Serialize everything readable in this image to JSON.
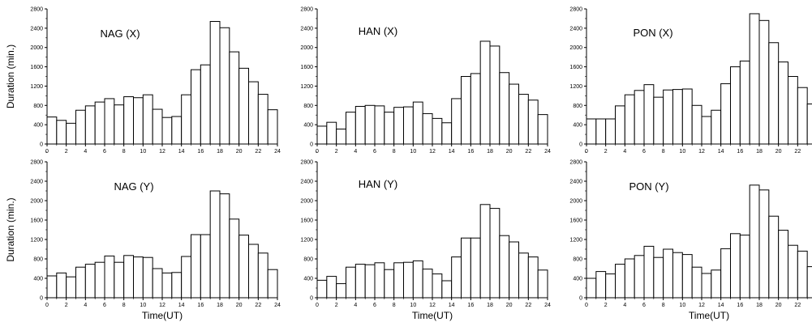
{
  "chart_data": [
    {
      "type": "bar",
      "title": "NAG (X)",
      "xlabel": "",
      "ylabel": "Duration (min.)",
      "x": [
        0,
        1,
        2,
        3,
        4,
        5,
        6,
        7,
        8,
        9,
        10,
        11,
        12,
        13,
        14,
        15,
        16,
        17,
        18,
        19,
        20,
        21,
        22,
        23
      ],
      "values": [
        560,
        490,
        430,
        700,
        790,
        870,
        940,
        810,
        980,
        960,
        1020,
        720,
        550,
        570,
        1020,
        1540,
        1640,
        2540,
        2410,
        1910,
        1570,
        1290,
        1030,
        710
      ],
      "xlim": [
        0,
        24
      ],
      "ylim": [
        0,
        2800
      ],
      "xticks": [
        "0",
        "2",
        "4",
        "6",
        "8",
        "10",
        "12",
        "14",
        "16",
        "18",
        "20",
        "22",
        "24"
      ],
      "yticks": [
        "0",
        "400",
        "800",
        "1200",
        "1600",
        "2000",
        "2400",
        "2800"
      ]
    },
    {
      "type": "bar",
      "title": "HAN (X)",
      "xlabel": "",
      "ylabel": "",
      "x": [
        0,
        1,
        2,
        3,
        4,
        5,
        6,
        7,
        8,
        9,
        10,
        11,
        12,
        13,
        14,
        15,
        16,
        17,
        18,
        19,
        20,
        21,
        22,
        23
      ],
      "values": [
        370,
        450,
        310,
        660,
        780,
        800,
        790,
        660,
        760,
        770,
        870,
        630,
        530,
        440,
        940,
        1400,
        1460,
        2130,
        2030,
        1480,
        1240,
        1030,
        910,
        610
      ],
      "xlim": [
        0,
        24
      ],
      "ylim": [
        0,
        2800
      ],
      "xticks": [
        "0",
        "2",
        "4",
        "6",
        "8",
        "10",
        "12",
        "14",
        "16",
        "18",
        "20",
        "22",
        "24"
      ],
      "yticks": [
        "0",
        "400",
        "800",
        "1200",
        "1600",
        "2000",
        "2400",
        "2800"
      ]
    },
    {
      "type": "bar",
      "title": "PON (X)",
      "xlabel": "",
      "ylabel": "",
      "x": [
        0,
        1,
        2,
        3,
        4,
        5,
        6,
        7,
        8,
        9,
        10,
        11,
        12,
        13,
        14,
        15,
        16,
        17,
        18,
        19,
        20,
        21,
        22,
        23
      ],
      "values": [
        520,
        520,
        520,
        790,
        1020,
        1110,
        1230,
        970,
        1120,
        1130,
        1140,
        800,
        570,
        700,
        1250,
        1600,
        1720,
        2700,
        2560,
        2100,
        1700,
        1400,
        1170,
        830
      ],
      "xlim": [
        0,
        24
      ],
      "ylim": [
        0,
        2800
      ],
      "xticks": [
        "0",
        "2",
        "4",
        "6",
        "8",
        "10",
        "12",
        "14",
        "16",
        "18",
        "20",
        "22",
        "2"
      ],
      "yticks": [
        "0",
        "400",
        "800",
        "1200",
        "1600",
        "2000",
        "2400",
        "2800"
      ]
    },
    {
      "type": "bar",
      "title": "NAG (Y)",
      "xlabel": "Time(UT)",
      "ylabel": "Duration (min.)",
      "x": [
        0,
        1,
        2,
        3,
        4,
        5,
        6,
        7,
        8,
        9,
        10,
        11,
        12,
        13,
        14,
        15,
        16,
        17,
        18,
        19,
        20,
        21,
        22,
        23
      ],
      "values": [
        450,
        510,
        430,
        630,
        690,
        730,
        860,
        730,
        870,
        840,
        830,
        600,
        510,
        520,
        850,
        1300,
        1300,
        2200,
        2140,
        1620,
        1290,
        1100,
        920,
        580
      ],
      "xlim": [
        0,
        24
      ],
      "ylim": [
        0,
        2800
      ],
      "xticks": [
        "0",
        "2",
        "4",
        "6",
        "8",
        "10",
        "12",
        "14",
        "16",
        "18",
        "20",
        "22",
        "24"
      ],
      "yticks": [
        "0",
        "400",
        "800",
        "1200",
        "1600",
        "2000",
        "2400",
        "2800"
      ]
    },
    {
      "type": "bar",
      "title": "HAN (Y)",
      "xlabel": "Time(UT)",
      "ylabel": "",
      "x": [
        0,
        1,
        2,
        3,
        4,
        5,
        6,
        7,
        8,
        9,
        10,
        11,
        12,
        13,
        14,
        15,
        16,
        17,
        18,
        19,
        20,
        21,
        22,
        23
      ],
      "values": [
        360,
        440,
        290,
        630,
        690,
        680,
        720,
        580,
        720,
        730,
        760,
        590,
        490,
        350,
        840,
        1230,
        1230,
        1920,
        1840,
        1280,
        1150,
        920,
        840,
        570
      ],
      "xlim": [
        0,
        24
      ],
      "ylim": [
        0,
        2800
      ],
      "xticks": [
        "0",
        "2",
        "4",
        "6",
        "8",
        "10",
        "12",
        "14",
        "16",
        "18",
        "20",
        "22",
        "24"
      ],
      "yticks": [
        "0",
        "400",
        "800",
        "1200",
        "1600",
        "2000",
        "2400",
        "2800"
      ]
    },
    {
      "type": "bar",
      "title": "PON (Y)",
      "xlabel": "Time(UT)",
      "ylabel": "",
      "x": [
        0,
        1,
        2,
        3,
        4,
        5,
        6,
        7,
        8,
        9,
        10,
        11,
        12,
        13,
        14,
        15,
        16,
        17,
        18,
        19,
        20,
        21,
        22,
        23
      ],
      "values": [
        400,
        540,
        490,
        690,
        800,
        870,
        1060,
        830,
        1000,
        930,
        890,
        630,
        500,
        570,
        1010,
        1320,
        1290,
        2320,
        2220,
        1680,
        1390,
        1080,
        960,
        640
      ],
      "xlim": [
        0,
        24
      ],
      "ylim": [
        0,
        2800
      ],
      "xticks": [
        "0",
        "2",
        "4",
        "6",
        "8",
        "10",
        "12",
        "14",
        "16",
        "18",
        "20",
        "22",
        "2"
      ],
      "yticks": [
        "0",
        "400",
        "800",
        "1200",
        "1600",
        "2000",
        "2400",
        "2800"
      ]
    }
  ]
}
